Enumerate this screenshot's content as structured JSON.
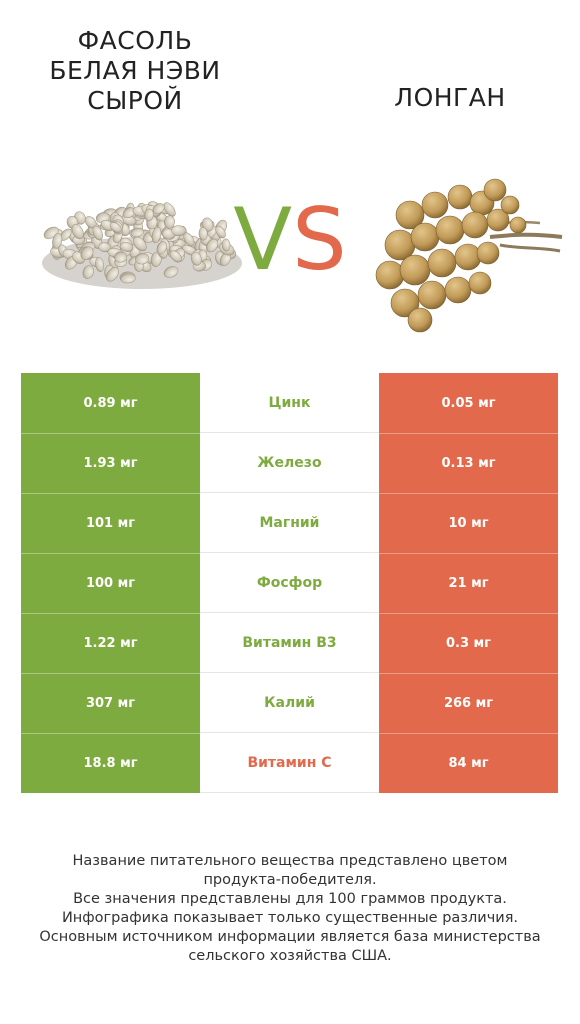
{
  "left_product": {
    "title_lines": [
      "ФАСОЛЬ",
      "БЕЛАЯ НЭВИ",
      "СЫРОЙ"
    ],
    "icon": "navy-beans-pile-icon",
    "color": "#7eab3f"
  },
  "right_product": {
    "title": "ЛОНГАН",
    "icon": "longan-fruit-cluster-icon",
    "color": "#e2694b"
  },
  "vs": {
    "v": "V",
    "s": "S"
  },
  "rows": [
    {
      "left": "0.89 мг",
      "nutrient": "Цинк",
      "right": "0.05 мг",
      "winner": "left"
    },
    {
      "left": "1.93 мг",
      "nutrient": "Железо",
      "right": "0.13 мг",
      "winner": "left"
    },
    {
      "left": "101 мг",
      "nutrient": "Магний",
      "right": "10 мг",
      "winner": "left"
    },
    {
      "left": "100 мг",
      "nutrient": "Фосфор",
      "right": "21 мг",
      "winner": "left"
    },
    {
      "left": "1.22 мг",
      "nutrient": "Витамин B3",
      "right": "0.3 мг",
      "winner": "left"
    },
    {
      "left": "307 мг",
      "nutrient": "Калий",
      "right": "266 мг",
      "winner": "left"
    },
    {
      "left": "18.8 мг",
      "nutrient": "Витамин C",
      "right": "84 мг",
      "winner": "right"
    }
  ],
  "footnote": [
    "Название питательного вещества представлено цветом",
    "продукта-победителя.",
    "Все значения представлены для 100 граммов продукта.",
    "Инфографика показывает только существенные различия.",
    "Основным источником информации является база министерства",
    "сельского хозяйства США."
  ]
}
